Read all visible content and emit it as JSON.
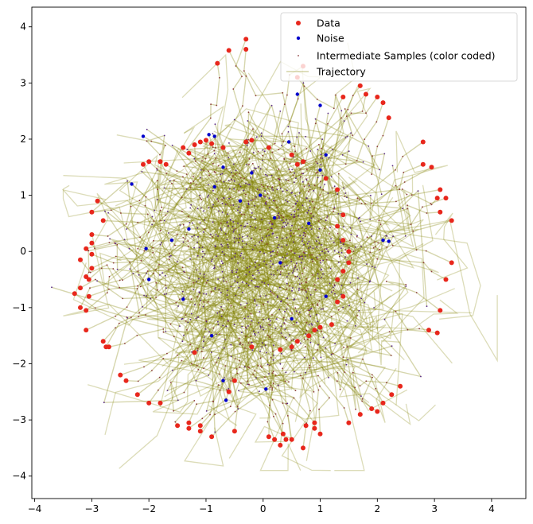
{
  "chart_data": {
    "type": "scatter",
    "title": "",
    "xlabel": "",
    "ylabel": "",
    "xlim": [
      -4.05,
      4.6
    ],
    "ylim": [
      -4.4,
      4.35
    ],
    "xticks": [
      -4,
      -3,
      -2,
      -1,
      0,
      1,
      2,
      3,
      4
    ],
    "yticks": [
      -4,
      -3,
      -2,
      -1,
      0,
      1,
      2,
      3,
      4
    ],
    "grid": false,
    "legend": {
      "position": "top-right",
      "entries": [
        "Data",
        "Noise",
        "Intermediate Samples (color coded)",
        "Trajectory"
      ]
    },
    "colors": {
      "data": "#e8271c",
      "noise": "#0000cc",
      "intermediate": "#8b3a3a",
      "trajectory": "#808000"
    },
    "data_points": [
      [
        -0.8,
        3.35
      ],
      [
        -0.6,
        3.58
      ],
      [
        -0.3,
        3.78
      ],
      [
        -0.3,
        3.6
      ],
      [
        0.7,
        3.3
      ],
      [
        0.6,
        3.1
      ],
      [
        1.4,
        2.75
      ],
      [
        1.7,
        2.95
      ],
      [
        1.8,
        2.8
      ],
      [
        2.0,
        2.75
      ],
      [
        2.1,
        2.65
      ],
      [
        2.2,
        2.38
      ],
      [
        -2.1,
        1.55
      ],
      [
        -2.0,
        1.6
      ],
      [
        -1.8,
        1.6
      ],
      [
        -1.7,
        1.55
      ],
      [
        -1.4,
        1.85
      ],
      [
        -1.3,
        1.75
      ],
      [
        -1.2,
        1.9
      ],
      [
        -1.1,
        1.95
      ],
      [
        -1.0,
        1.98
      ],
      [
        -0.9,
        1.92
      ],
      [
        -0.7,
        1.85
      ],
      [
        -0.3,
        1.95
      ],
      [
        -0.2,
        1.98
      ],
      [
        0.1,
        1.85
      ],
      [
        0.5,
        1.72
      ],
      [
        0.6,
        1.55
      ],
      [
        0.7,
        1.6
      ],
      [
        1.1,
        1.3
      ],
      [
        1.3,
        1.1
      ],
      [
        2.8,
        1.95
      ],
      [
        2.8,
        1.55
      ],
      [
        2.95,
        1.5
      ],
      [
        3.1,
        1.1
      ],
      [
        3.05,
        0.95
      ],
      [
        3.2,
        0.95
      ],
      [
        3.1,
        0.7
      ],
      [
        3.3,
        0.55
      ],
      [
        -3.0,
        0.7
      ],
      [
        -2.9,
        0.9
      ],
      [
        -2.8,
        0.55
      ],
      [
        -3.0,
        0.3
      ],
      [
        -3.0,
        0.15
      ],
      [
        -3.1,
        0.05
      ],
      [
        -3.0,
        -0.05
      ],
      [
        -3.2,
        -0.15
      ],
      [
        -3.0,
        -0.3
      ],
      [
        -3.1,
        -0.45
      ],
      [
        -3.05,
        -0.5
      ],
      [
        -3.2,
        -0.65
      ],
      [
        -3.3,
        -0.75
      ],
      [
        -3.05,
        -0.8
      ],
      [
        -3.1,
        -1.05
      ],
      [
        -3.2,
        -1.0
      ],
      [
        -3.1,
        -1.4
      ],
      [
        -2.8,
        -1.6
      ],
      [
        -2.75,
        -1.7
      ],
      [
        -2.7,
        -1.7
      ],
      [
        -2.5,
        -2.2
      ],
      [
        -2.4,
        -2.3
      ],
      [
        -2.2,
        -2.55
      ],
      [
        -2.0,
        -2.7
      ],
      [
        -1.8,
        -2.7
      ],
      [
        -1.5,
        -3.1
      ],
      [
        -1.3,
        -3.05
      ],
      [
        -1.3,
        -3.15
      ],
      [
        -1.1,
        -3.1
      ],
      [
        -1.1,
        -3.2
      ],
      [
        -0.9,
        -3.3
      ],
      [
        -0.5,
        -3.2
      ],
      [
        0.1,
        -3.3
      ],
      [
        0.2,
        -3.35
      ],
      [
        0.3,
        -3.45
      ],
      [
        0.35,
        -3.25
      ],
      [
        0.4,
        -3.35
      ],
      [
        0.5,
        -3.35
      ],
      [
        0.7,
        -3.5
      ],
      [
        0.75,
        -3.1
      ],
      [
        0.9,
        -3.05
      ],
      [
        0.9,
        -3.15
      ],
      [
        1.0,
        -3.25
      ],
      [
        1.5,
        -3.05
      ],
      [
        1.7,
        -2.9
      ],
      [
        1.9,
        -2.8
      ],
      [
        2.0,
        -2.85
      ],
      [
        2.1,
        -2.7
      ],
      [
        2.25,
        -2.55
      ],
      [
        2.4,
        -2.4
      ],
      [
        -0.5,
        -2.3
      ],
      [
        -0.6,
        -2.5
      ],
      [
        0.3,
        -1.75
      ],
      [
        0.5,
        -1.7
      ],
      [
        0.6,
        -1.6
      ],
      [
        0.8,
        -1.5
      ],
      [
        0.9,
        -1.4
      ],
      [
        1.0,
        -1.35
      ],
      [
        1.2,
        -1.3
      ],
      [
        1.3,
        -0.9
      ],
      [
        1.4,
        -0.8
      ],
      [
        1.3,
        -0.5
      ],
      [
        1.4,
        -0.35
      ],
      [
        1.5,
        -0.2
      ],
      [
        1.5,
        0.0
      ],
      [
        1.4,
        0.2
      ],
      [
        1.3,
        0.45
      ],
      [
        1.4,
        0.65
      ],
      [
        2.9,
        -1.4
      ],
      [
        3.05,
        -1.45
      ],
      [
        3.1,
        -1.05
      ],
      [
        3.2,
        -0.5
      ],
      [
        3.3,
        -0.2
      ],
      [
        -1.2,
        -1.8
      ],
      [
        -0.2,
        -1.7
      ]
    ],
    "noise_points": [
      [
        -2.1,
        2.05
      ],
      [
        -0.95,
        2.08
      ],
      [
        -0.85,
        2.05
      ],
      [
        0.45,
        1.95
      ],
      [
        0.6,
        2.8
      ],
      [
        1.0,
        2.6
      ],
      [
        1.1,
        1.72
      ],
      [
        2.1,
        0.2
      ],
      [
        2.2,
        0.18
      ],
      [
        -2.3,
        1.2
      ],
      [
        -2.05,
        0.05
      ],
      [
        -2.0,
        -0.5
      ],
      [
        -1.4,
        -0.85
      ],
      [
        -0.9,
        -1.5
      ],
      [
        -0.7,
        -2.3
      ],
      [
        -0.65,
        -2.65
      ],
      [
        0.05,
        -2.45
      ],
      [
        -0.2,
        1.4
      ],
      [
        -0.05,
        1.0
      ],
      [
        -0.85,
        1.15
      ],
      [
        0.8,
        0.5
      ],
      [
        0.3,
        -0.2
      ],
      [
        -0.4,
        0.9
      ],
      [
        0.5,
        -1.2
      ],
      [
        1.0,
        1.45
      ],
      [
        -1.3,
        0.4
      ],
      [
        -0.7,
        1.5
      ],
      [
        0.2,
        0.6
      ],
      [
        1.1,
        -0.8
      ],
      [
        -1.6,
        0.2
      ]
    ]
  }
}
